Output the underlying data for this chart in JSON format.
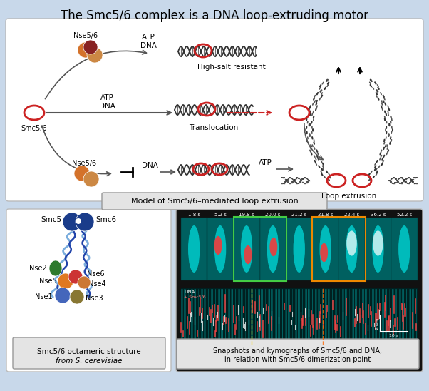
{
  "title": "The Smc5/6 complex is a DNA loop-extruding motor",
  "title_fontsize": 12,
  "bg_color": "#c8d8ea",
  "white": "#ffffff",
  "gray_panel": "#e8e8e8",
  "middle_label": "Model of Smc5/6–mediated loop extrusion",
  "bottom_left_caption_line1": "Smc5/6 octameric structure",
  "bottom_left_caption_line2": "from S. cerevisiae",
  "bottom_right_caption_line1": "Snapshots and kymographs of Smc5/6 and DNA,",
  "bottom_right_caption_line2": "in relation with Smc5/6 dimerization point",
  "kymograph_times": [
    "1.8 s",
    "5.2 s",
    "19.8 s",
    "20.0 s",
    "21.2 s",
    "21.8 s",
    "22.4 s",
    "36.2 s",
    "52.2 s"
  ],
  "red": "#cc2222",
  "arrow_color": "#555555",
  "orange1": "#d4722a",
  "orange2": "#cc8844",
  "darkred": "#882222",
  "nse2_color": "#2d7a2d",
  "nse5_color": "#e07820",
  "nse6_color": "#cc3333",
  "nse4_color": "#cc7733",
  "nse1_color": "#4466bb",
  "nse3_color": "#887733",
  "smc_color": "#1a3c8a",
  "arm_light": "#7aaddd",
  "arm_dark": "#2244aa"
}
